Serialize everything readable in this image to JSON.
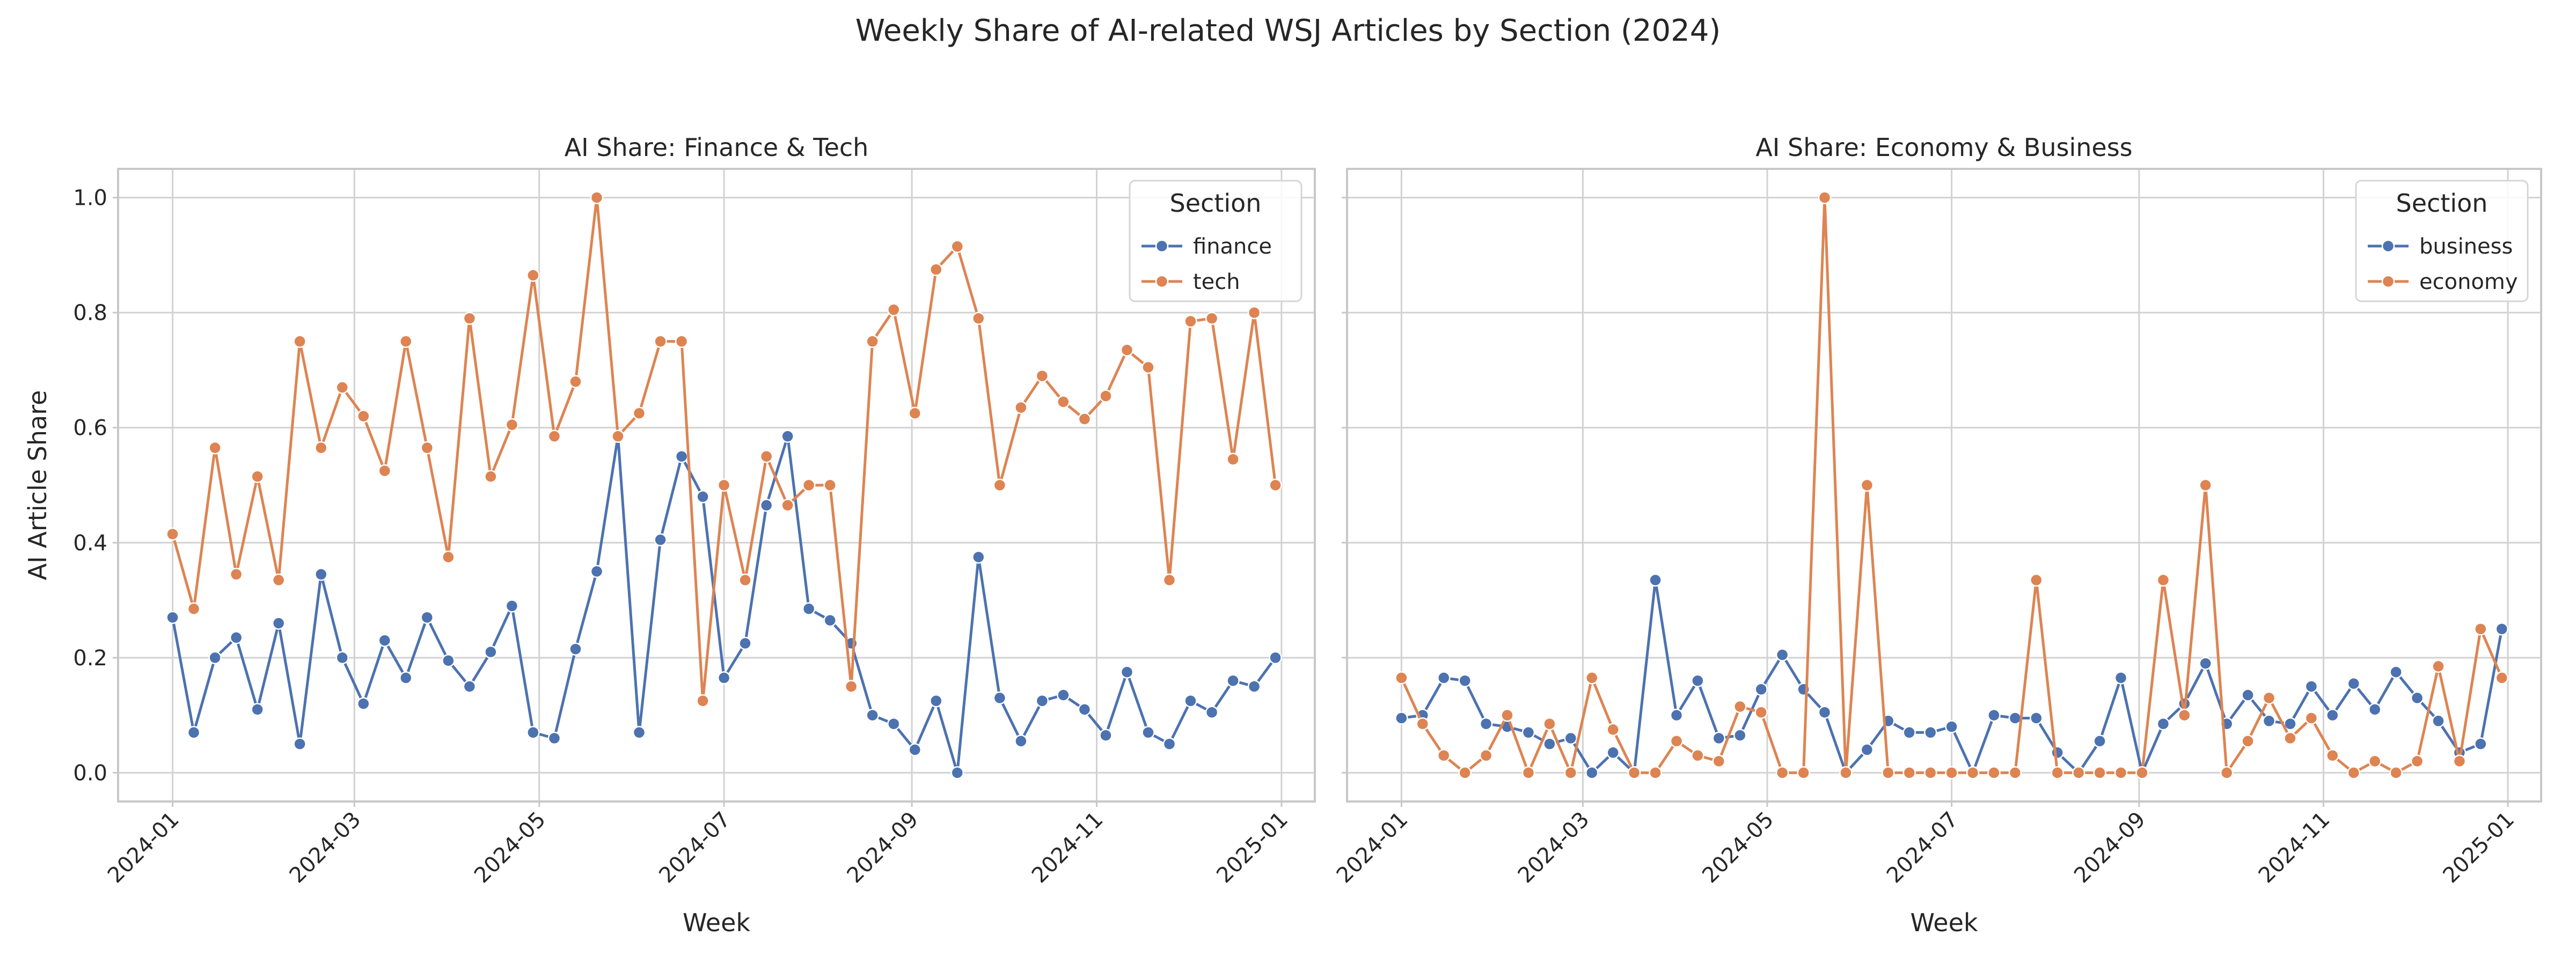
{
  "figure": {
    "title": "Weekly Share of AI-related WSJ Articles by Section (2024)"
  },
  "colors": {
    "blue": "#4c72b0",
    "orange": "#dd8452"
  },
  "chart_data": [
    {
      "type": "line",
      "title": "AI Share: Finance & Tech",
      "xlabel": "Week",
      "ylabel": "AI Article Share",
      "xlim": [
        "2023-12-14",
        "2025-01-12"
      ],
      "ylim": [
        -0.05,
        1.05
      ],
      "xticks": [
        "2024-01",
        "2024-03",
        "2024-05",
        "2024-07",
        "2024-09",
        "2024-11",
        "2025-01"
      ],
      "yticks": [
        "0.0",
        "0.2",
        "0.4",
        "0.6",
        "0.8",
        "1.0"
      ],
      "grid": true,
      "legend": {
        "title": "Section",
        "placement": "upper right"
      },
      "series": [
        {
          "name": "finance",
          "color": "#4c72b0",
          "x": [
            "2024-01-01",
            "2024-01-08",
            "2024-01-15",
            "2024-01-22",
            "2024-01-29",
            "2024-02-05",
            "2024-02-12",
            "2024-02-19",
            "2024-02-26",
            "2024-03-04",
            "2024-03-11",
            "2024-03-18",
            "2024-03-25",
            "2024-04-01",
            "2024-04-08",
            "2024-04-15",
            "2024-04-22",
            "2024-04-29",
            "2024-05-06",
            "2024-05-13",
            "2024-05-20",
            "2024-05-27",
            "2024-06-03",
            "2024-06-10",
            "2024-06-17",
            "2024-06-24",
            "2024-07-01",
            "2024-07-08",
            "2024-07-15",
            "2024-07-22",
            "2024-07-29",
            "2024-08-05",
            "2024-08-12",
            "2024-08-19",
            "2024-08-26",
            "2024-09-02",
            "2024-09-09",
            "2024-09-16",
            "2024-09-23",
            "2024-09-30",
            "2024-10-07",
            "2024-10-14",
            "2024-10-21",
            "2024-10-28",
            "2024-11-04",
            "2024-11-11",
            "2024-11-18",
            "2024-11-25",
            "2024-12-02",
            "2024-12-09",
            "2024-12-16",
            "2024-12-23",
            "2024-12-30"
          ],
          "values": [
            0.27,
            0.07,
            0.2,
            0.235,
            0.11,
            0.26,
            0.05,
            0.345,
            0.2,
            0.12,
            0.23,
            0.165,
            0.27,
            0.195,
            0.15,
            0.21,
            0.29,
            0.07,
            0.06,
            0.215,
            0.35,
            0.585,
            0.07,
            0.405,
            0.55,
            0.48,
            0.165,
            0.225,
            0.465,
            0.585,
            0.285,
            0.265,
            0.225,
            0.1,
            0.085,
            0.04,
            0.125,
            0.0,
            0.375,
            0.13,
            0.055,
            0.125,
            0.135,
            0.11,
            0.065,
            0.175,
            0.07,
            0.05,
            0.125,
            0.105,
            0.16,
            0.15,
            0.2
          ]
        },
        {
          "name": "tech",
          "color": "#dd8452",
          "x": [
            "2024-01-01",
            "2024-01-08",
            "2024-01-15",
            "2024-01-22",
            "2024-01-29",
            "2024-02-05",
            "2024-02-12",
            "2024-02-19",
            "2024-02-26",
            "2024-03-04",
            "2024-03-11",
            "2024-03-18",
            "2024-03-25",
            "2024-04-01",
            "2024-04-08",
            "2024-04-15",
            "2024-04-22",
            "2024-04-29",
            "2024-05-06",
            "2024-05-13",
            "2024-05-20",
            "2024-05-27",
            "2024-06-03",
            "2024-06-10",
            "2024-06-17",
            "2024-06-24",
            "2024-07-01",
            "2024-07-08",
            "2024-07-15",
            "2024-07-22",
            "2024-07-29",
            "2024-08-05",
            "2024-08-12",
            "2024-08-19",
            "2024-08-26",
            "2024-09-02",
            "2024-09-09",
            "2024-09-16",
            "2024-09-23",
            "2024-09-30",
            "2024-10-07",
            "2024-10-14",
            "2024-10-21",
            "2024-10-28",
            "2024-11-04",
            "2024-11-11",
            "2024-11-18",
            "2024-11-25",
            "2024-12-02",
            "2024-12-09",
            "2024-12-16",
            "2024-12-23",
            "2024-12-30"
          ],
          "values": [
            0.415,
            0.285,
            0.565,
            0.345,
            0.515,
            0.335,
            0.75,
            0.565,
            0.67,
            0.62,
            0.525,
            0.75,
            0.565,
            0.375,
            0.79,
            0.515,
            0.605,
            0.865,
            0.585,
            0.68,
            1.0,
            0.585,
            0.625,
            0.75,
            0.75,
            0.125,
            0.5,
            0.335,
            0.55,
            0.465,
            0.5,
            0.5,
            0.15,
            0.75,
            0.805,
            0.625,
            0.875,
            0.915,
            0.79,
            0.5,
            0.635,
            0.69,
            0.645,
            0.615,
            0.655,
            0.735,
            0.705,
            0.335,
            0.785,
            0.79,
            0.545,
            0.8,
            0.5
          ]
        }
      ]
    },
    {
      "type": "line",
      "title": "AI Share: Economy & Business",
      "xlabel": "Week",
      "ylabel": "",
      "xlim": [
        "2023-12-14",
        "2025-01-12"
      ],
      "ylim": [
        -0.05,
        1.05
      ],
      "xticks": [
        "2024-01",
        "2024-03",
        "2024-05",
        "2024-07",
        "2024-09",
        "2024-11",
        "2025-01"
      ],
      "grid": true,
      "sharey": true,
      "legend": {
        "title": "Section",
        "placement": "upper right"
      },
      "series": [
        {
          "name": "business",
          "color": "#4c72b0",
          "x": [
            "2024-01-01",
            "2024-01-08",
            "2024-01-15",
            "2024-01-22",
            "2024-01-29",
            "2024-02-05",
            "2024-02-12",
            "2024-02-19",
            "2024-02-26",
            "2024-03-04",
            "2024-03-11",
            "2024-03-18",
            "2024-03-25",
            "2024-04-01",
            "2024-04-08",
            "2024-04-15",
            "2024-04-22",
            "2024-04-29",
            "2024-05-06",
            "2024-05-13",
            "2024-05-20",
            "2024-05-27",
            "2024-06-03",
            "2024-06-10",
            "2024-06-17",
            "2024-06-24",
            "2024-07-01",
            "2024-07-08",
            "2024-07-15",
            "2024-07-22",
            "2024-07-29",
            "2024-08-05",
            "2024-08-12",
            "2024-08-19",
            "2024-08-26",
            "2024-09-02",
            "2024-09-09",
            "2024-09-16",
            "2024-09-23",
            "2024-09-30",
            "2024-10-07",
            "2024-10-14",
            "2024-10-21",
            "2024-10-28",
            "2024-11-04",
            "2024-11-11",
            "2024-11-18",
            "2024-11-25",
            "2024-12-02",
            "2024-12-09",
            "2024-12-16",
            "2024-12-23",
            "2024-12-30"
          ],
          "values": [
            0.095,
            0.1,
            0.165,
            0.16,
            0.085,
            0.08,
            0.07,
            0.05,
            0.06,
            0.0,
            0.035,
            0.0,
            0.335,
            0.1,
            0.16,
            0.06,
            0.065,
            0.145,
            0.205,
            0.145,
            0.105,
            0.0,
            0.04,
            0.09,
            0.07,
            0.07,
            0.08,
            0.0,
            0.1,
            0.095,
            0.095,
            0.035,
            0.0,
            0.055,
            0.165,
            0.0,
            0.085,
            0.12,
            0.19,
            0.085,
            0.135,
            0.09,
            0.085,
            0.15,
            0.1,
            0.155,
            0.11,
            0.175,
            0.13,
            0.09,
            0.035,
            0.05,
            0.25
          ]
        },
        {
          "name": "economy",
          "color": "#dd8452",
          "x": [
            "2024-01-01",
            "2024-01-08",
            "2024-01-15",
            "2024-01-22",
            "2024-01-29",
            "2024-02-05",
            "2024-02-12",
            "2024-02-19",
            "2024-02-26",
            "2024-03-04",
            "2024-03-11",
            "2024-03-18",
            "2024-03-25",
            "2024-04-01",
            "2024-04-08",
            "2024-04-15",
            "2024-04-22",
            "2024-04-29",
            "2024-05-06",
            "2024-05-13",
            "2024-05-20",
            "2024-05-27",
            "2024-06-03",
            "2024-06-10",
            "2024-06-17",
            "2024-06-24",
            "2024-07-01",
            "2024-07-08",
            "2024-07-15",
            "2024-07-22",
            "2024-07-29",
            "2024-08-05",
            "2024-08-12",
            "2024-08-19",
            "2024-08-26",
            "2024-09-02",
            "2024-09-09",
            "2024-09-16",
            "2024-09-23",
            "2024-09-30",
            "2024-10-07",
            "2024-10-14",
            "2024-10-21",
            "2024-10-28",
            "2024-11-04",
            "2024-11-11",
            "2024-11-18",
            "2024-11-25",
            "2024-12-02",
            "2024-12-09",
            "2024-12-16",
            "2024-12-23",
            "2024-12-30"
          ],
          "values": [
            0.165,
            0.085,
            0.03,
            0.0,
            0.03,
            0.1,
            0.0,
            0.085,
            0.0,
            0.165,
            0.075,
            0.0,
            0.0,
            0.055,
            0.03,
            0.02,
            0.115,
            0.105,
            0.0,
            0.0,
            1.0,
            0.0,
            0.5,
            0.0,
            0.0,
            0.0,
            0.0,
            0.0,
            0.0,
            0.0,
            0.335,
            0.0,
            0.0,
            0.0,
            0.0,
            0.0,
            0.335,
            0.1,
            0.5,
            0.0,
            0.055,
            0.13,
            0.06,
            0.095,
            0.03,
            0.0,
            0.02,
            0.0,
            0.02,
            0.185,
            0.02,
            0.25,
            0.165
          ]
        }
      ]
    }
  ]
}
